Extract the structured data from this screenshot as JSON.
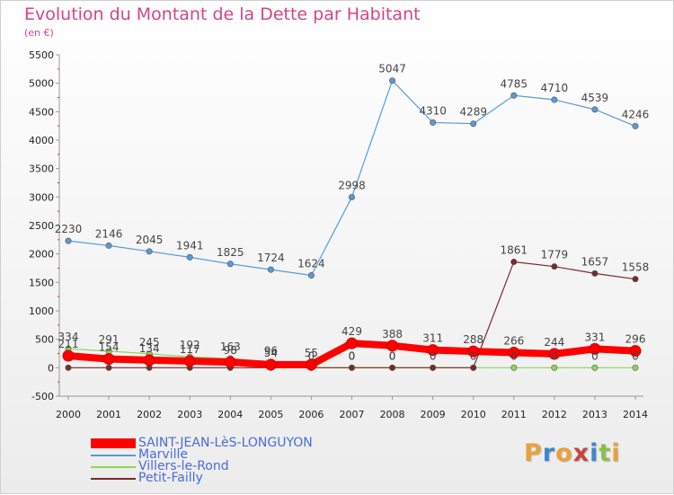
{
  "chart_data": {
    "type": "line",
    "title": "Evolution du Montant de la Dette par Habitant",
    "subtitle": "(en €)",
    "x": [
      "2000",
      "2001",
      "2002",
      "2003",
      "2004",
      "2005",
      "2006",
      "2007",
      "2008",
      "2009",
      "2010",
      "2011",
      "2012",
      "2013",
      "2014"
    ],
    "yticks": [
      "-500",
      "0",
      "500",
      "1000",
      "1500",
      "2000",
      "2500",
      "3000",
      "3500",
      "4000",
      "4500",
      "5000",
      "5500"
    ],
    "ylim": [
      -500,
      5500
    ],
    "grid": false,
    "legend_placement": "bottom-left",
    "series": [
      {
        "name": "SAINT-JEAN-LèS-LONGUYON",
        "color": "#ff0000",
        "values": [
          211,
          154,
          134,
          117,
          98,
          54,
          55,
          429,
          388,
          311,
          288,
          266,
          244,
          331,
          296
        ],
        "labels": [
          "211",
          "154",
          "134",
          "117",
          "98",
          "54",
          "55",
          "429",
          "388",
          "311",
          "288",
          "266",
          "244",
          "331",
          "296"
        ]
      },
      {
        "name": "Marville",
        "color": "#5b9ad5",
        "values": [
          2230,
          2146,
          2045,
          1941,
          1825,
          1724,
          1624,
          2998,
          5047,
          4310,
          4289,
          4785,
          4710,
          4539,
          4246
        ],
        "labels": [
          "2230",
          "2146",
          "2045",
          "1941",
          "1825",
          "1724",
          "1624",
          "2998",
          "5047",
          "4310",
          "4289",
          "4785",
          "4710",
          "4539",
          "4246"
        ]
      },
      {
        "name": "Villers-le-Rond",
        "color": "#8fd35a",
        "values": [
          334,
          291,
          245,
          192,
          163,
          96,
          0,
          0,
          0,
          0,
          0,
          0,
          0,
          0,
          0
        ],
        "labels": [
          "334",
          "291",
          "245",
          "192",
          "163",
          "96",
          "",
          "",
          "",
          "",
          "",
          "",
          "",
          "",
          ""
        ]
      },
      {
        "name": "Petit-Failly",
        "color": "#7a2a2a",
        "values": [
          0,
          0,
          0,
          0,
          0,
          0,
          0,
          0,
          0,
          0,
          0,
          1861,
          1779,
          1657,
          1558
        ],
        "labels": [
          "",
          "",
          "",
          "",
          "",
          "",
          "",
          "",
          "",
          "",
          "",
          "1861",
          "1779",
          "1657",
          "1558"
        ]
      }
    ],
    "extra_labels": [
      {
        "x_index": 6,
        "value": 0,
        "text": "0"
      },
      {
        "x_index": 7,
        "value": 0,
        "text": "0"
      },
      {
        "x_index": 7,
        "value": 0,
        "text": "0"
      },
      {
        "x_index": 8,
        "value": 0,
        "text": "0"
      },
      {
        "x_index": 8,
        "value": 0,
        "text": "0"
      },
      {
        "x_index": 9,
        "value": 0,
        "text": "0"
      },
      {
        "x_index": 10,
        "value": 0,
        "text": "0"
      },
      {
        "x_index": 11,
        "value": 0,
        "text": "0"
      },
      {
        "x_index": 12,
        "value": 0,
        "text": "0"
      },
      {
        "x_index": 13,
        "value": 0,
        "text": "0"
      },
      {
        "x_index": 14,
        "value": 0,
        "text": "0"
      }
    ]
  },
  "branding": {
    "logo_letters": [
      "P",
      "r",
      "o",
      "x",
      "i",
      "t",
      "i"
    ],
    "logo_colors": [
      "#e8a23a",
      "#3f86c9",
      "#e8a23a",
      "#c7453c",
      "#3f86c9",
      "#8bbf4a",
      "#e8a23a"
    ]
  }
}
